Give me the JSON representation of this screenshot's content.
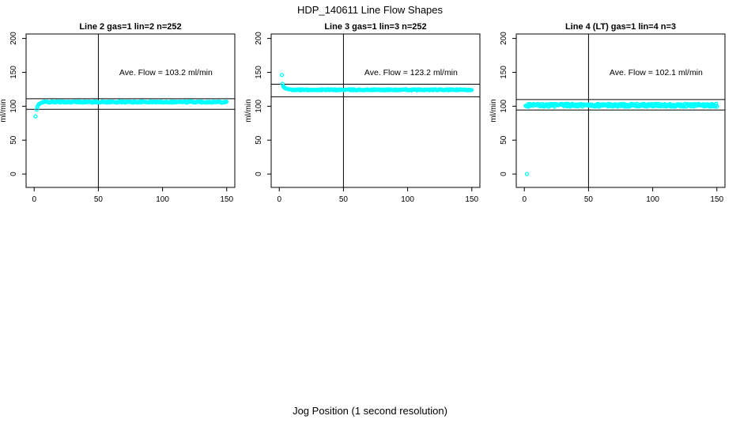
{
  "window": {
    "title": "HDP_140611  Line Flow Shapes"
  },
  "chart_data": {
    "type": "scatter",
    "title": "HDP_140611  Line Flow Shapes",
    "xlabel": "Jog Position (1 second resolution)",
    "ylabel": "ml/min",
    "xlim": [
      0,
      150
    ],
    "ylim": [
      0,
      200
    ],
    "x_ticks": [
      0,
      50,
      100,
      150
    ],
    "y_ticks": [
      0,
      50,
      100,
      150,
      200
    ],
    "grid": false,
    "legend_position": "none",
    "marker": {
      "shape": "open-circle",
      "color": "#00FFFF",
      "radius": 2
    },
    "line_color": "#000000",
    "panels": [
      {
        "title": "Line 2 gas=1 lin=2 n=252",
        "annotation": "Ave. Flow =  103.2  ml/min",
        "ave_flow_ml_min": 103.2,
        "n": 252,
        "vline_x": 50,
        "ref_lines": {
          "upper": 111.0,
          "lower": 95.5
        },
        "transient_points": [
          [
            1,
            85
          ],
          [
            2,
            95
          ],
          [
            2.5,
            99
          ],
          [
            3,
            101
          ],
          [
            3.5,
            102.5
          ],
          [
            4,
            103.5
          ],
          [
            5,
            104.5
          ],
          [
            6,
            105.3
          ],
          [
            7,
            105.8
          ]
        ],
        "steady": {
          "x_start": 7,
          "x_end": 150,
          "y": 106.3,
          "jitter": 0.9,
          "step": 0.6
        },
        "outliers": []
      },
      {
        "title": "Line 3 gas=1 lin=3 n=252",
        "annotation": "Ave. Flow =  123.2  ml/min",
        "ave_flow_ml_min": 123.2,
        "n": 252,
        "vline_x": 50,
        "ref_lines": {
          "upper": 132.5,
          "lower": 114.0
        },
        "transient_points": [
          [
            2,
            146
          ],
          [
            2.5,
            133
          ],
          [
            3,
            130
          ],
          [
            3.5,
            128.5
          ],
          [
            4,
            127.5
          ],
          [
            4.5,
            126.8
          ],
          [
            5,
            126.3
          ],
          [
            6,
            125.6
          ],
          [
            7,
            125.2
          ],
          [
            8,
            124.9
          ],
          [
            9,
            124.7
          ],
          [
            10,
            124.5
          ]
        ],
        "steady": {
          "x_start": 10,
          "x_end": 150,
          "y": 124.2,
          "jitter": 0.8,
          "step": 0.6
        },
        "outliers": []
      },
      {
        "title": "Line 4 (LT) gas=1 lin=4 n=3",
        "annotation": "Ave. Flow =  102.1  ml/min",
        "ave_flow_ml_min": 102.1,
        "n": 3,
        "vline_x": 50,
        "ref_lines": {
          "upper": 109.8,
          "lower": 94.4
        },
        "transient_points": [],
        "steady": {
          "x_start": 1,
          "x_end": 150,
          "y": 101.5,
          "jitter": 2.1,
          "step": 0.45
        },
        "outliers": [
          [
            2,
            0
          ]
        ]
      }
    ]
  }
}
